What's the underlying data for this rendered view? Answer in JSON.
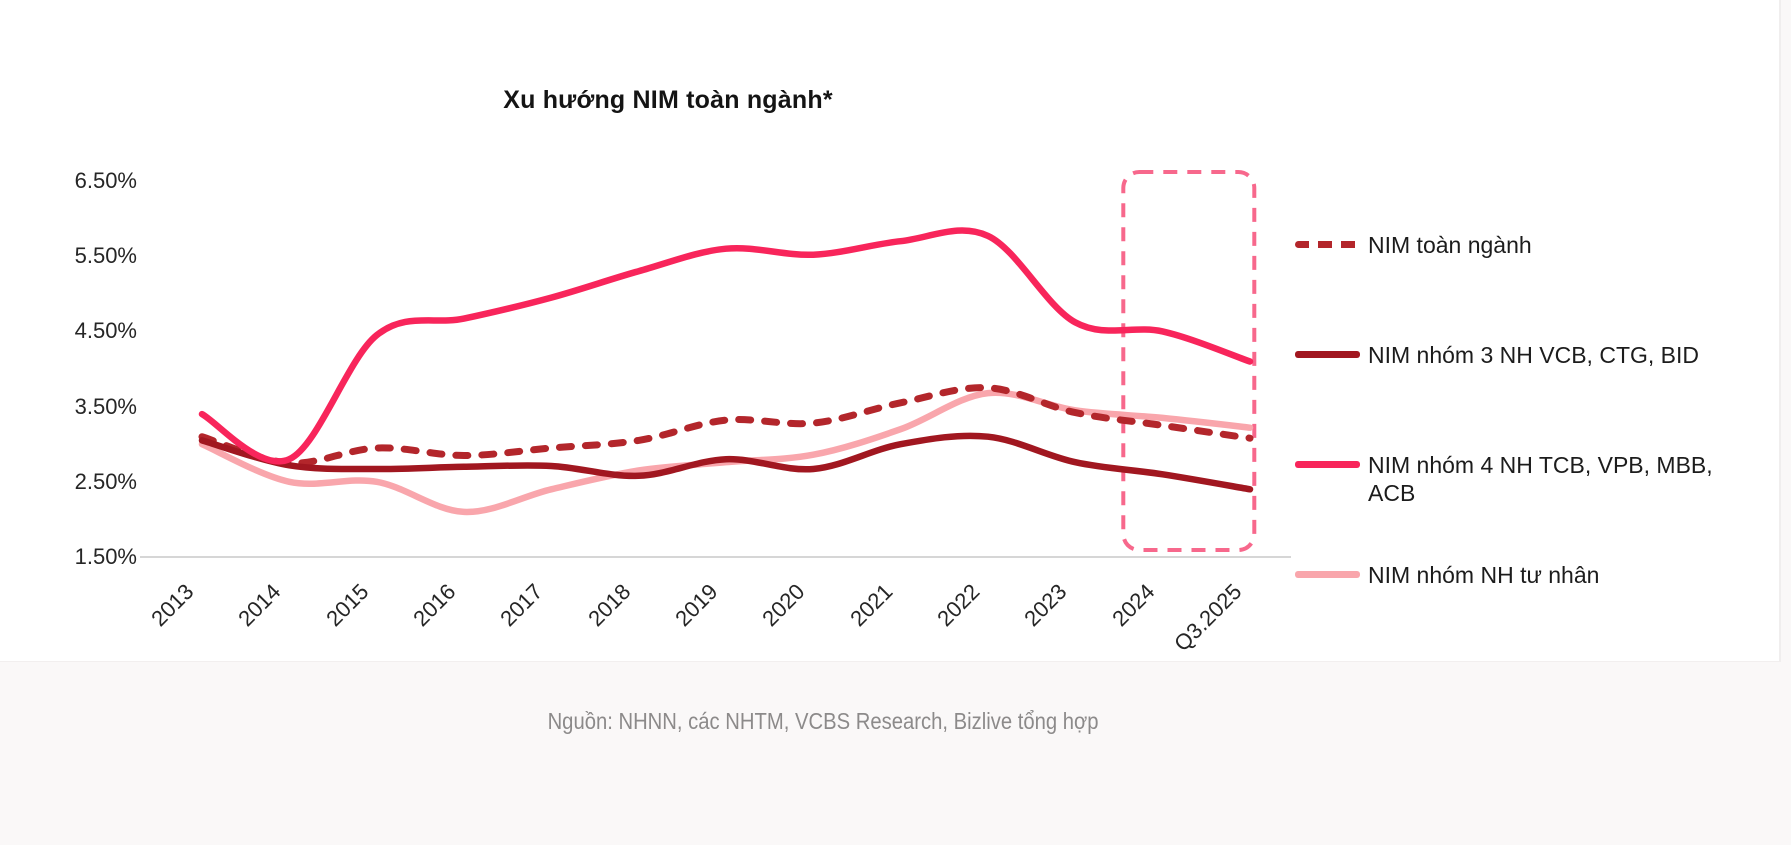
{
  "page": {
    "source_note": "Nguồn: NHNN, các NHTM, VCBS Research, Bizlive tổng hợp"
  },
  "chart_data": {
    "type": "line",
    "title": "Xu hướng NIM toàn ngành*",
    "categories": [
      "2013",
      "2014",
      "2015",
      "2016",
      "2017",
      "2018",
      "2019",
      "2020",
      "2021",
      "2022",
      "2023",
      "2024",
      "Q3.2025"
    ],
    "y_ticks": [
      "6.50%",
      "5.50%",
      "4.50%",
      "3.50%",
      "2.50%",
      "1.50%"
    ],
    "ylim": [
      1.5,
      6.5
    ],
    "grid": false,
    "legend_position": "right",
    "axis_color": "#d6d6d6",
    "series": [
      {
        "name": "NIM toàn ngành",
        "color": "#b3262b",
        "dash": true,
        "values": [
          3.1,
          2.75,
          2.95,
          2.85,
          2.95,
          3.05,
          3.32,
          3.28,
          3.55,
          3.75,
          3.42,
          3.25,
          3.08
        ]
      },
      {
        "name": "NIM nhóm 3 NH VCB, CTG, BID",
        "color": "#a11720",
        "dash": false,
        "values": [
          3.05,
          2.72,
          2.67,
          2.7,
          2.71,
          2.58,
          2.8,
          2.67,
          3.0,
          3.1,
          2.76,
          2.6,
          2.4
        ]
      },
      {
        "name": "NIM nhóm 4 NH TCB, VPB, MBB, ACB",
        "color": "#f8255b",
        "dash": false,
        "values": [
          3.4,
          2.8,
          4.45,
          4.67,
          4.95,
          5.3,
          5.6,
          5.52,
          5.7,
          5.77,
          4.62,
          4.5,
          4.1
        ]
      },
      {
        "name": "NIM nhóm NH tư nhân",
        "color": "#f9a6ac",
        "dash": false,
        "values": [
          3.0,
          2.5,
          2.5,
          2.1,
          2.4,
          2.65,
          2.76,
          2.86,
          3.2,
          3.68,
          3.45,
          3.35,
          3.22
        ]
      }
    ],
    "highlight": {
      "shape": "dashed-box",
      "from": "2024",
      "to": "Q3.2025",
      "color": "#f7688c"
    }
  }
}
